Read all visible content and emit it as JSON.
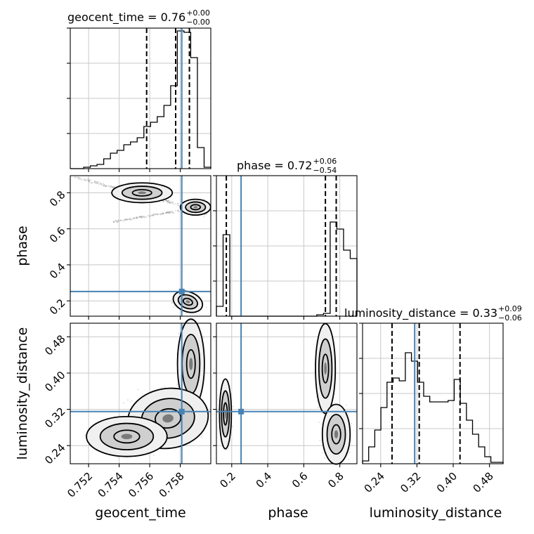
{
  "chart_data": {
    "type": "corner",
    "parameters": [
      "geocent_time",
      "phase",
      "luminosity_distance"
    ],
    "truths": {
      "geocent_time": 0.7581,
      "phase": 0.252,
      "luminosity_distance": 0.315
    },
    "titles": [
      {
        "param": "geocent_time",
        "label": "geocent_time = 0.76",
        "upper": "+0.00",
        "lower": "−0.00"
      },
      {
        "param": "phase",
        "label": "phase = 0.72",
        "upper": "+0.06",
        "lower": "−0.54"
      },
      {
        "param": "luminosity_distance",
        "label": "luminosity_distance = 0.33",
        "upper": "+0.09",
        "lower": "−0.06"
      }
    ],
    "ranges": {
      "geocent_time": [
        0.7508,
        0.76
      ],
      "phase": [
        0.115,
        0.895
      ],
      "luminosity_distance": [
        0.2,
        0.51
      ]
    },
    "ticks": {
      "geocent_time": {
        "values": [
          0.752,
          0.754,
          0.756,
          0.758
        ],
        "labels": [
          "0.752",
          "0.754",
          "0.756",
          "0.758"
        ]
      },
      "phase": {
        "values": [
          0.2,
          0.4,
          0.6,
          0.8
        ],
        "labels": [
          "0.2",
          "0.4",
          "0.6",
          "0.8"
        ]
      },
      "luminosity_distance": {
        "values": [
          0.24,
          0.32,
          0.4,
          0.48
        ],
        "labels": [
          "0.24",
          "0.32",
          "0.40",
          "0.48"
        ]
      }
    },
    "quantiles": {
      "geocent_time": [
        0.7558,
        0.7577,
        0.7586
      ],
      "phase": [
        0.17,
        0.72,
        0.78
      ],
      "luminosity_distance": [
        0.265,
        0.325,
        0.415
      ]
    },
    "histograms": {
      "geocent_time": [
        0,
        0,
        0.01,
        0.02,
        0.03,
        0.07,
        0.11,
        0.13,
        0.17,
        0.19,
        0.22,
        0.3,
        0.33,
        0.37,
        0.45,
        0.59,
        0.98,
        0.97,
        0.79,
        0.15,
        0.01
      ],
      "phase": [
        0.07,
        0.58,
        0,
        0,
        0,
        0,
        0,
        0,
        0,
        0,
        0,
        0,
        0,
        0,
        0,
        0.01,
        0.02,
        0.67,
        0.62,
        0.47,
        0.41
      ],
      "luminosity_distance": [
        0.02,
        0.12,
        0.24,
        0.4,
        0.58,
        0.61,
        0.59,
        0.79,
        0.73,
        0.58,
        0.48,
        0.44,
        0.44,
        0.44,
        0.45,
        0.6,
        0.43,
        0.31,
        0.21,
        0.12,
        0.05,
        0.01,
        0.01
      ]
    },
    "axis_labels": {
      "geocent_time": "geocent_time",
      "phase": "phase",
      "luminosity_distance": "luminosity_distance"
    },
    "grid": true
  },
  "colors": {
    "truth": "#4682b4",
    "contour": "#000000",
    "grid": "#c8c8c8"
  }
}
